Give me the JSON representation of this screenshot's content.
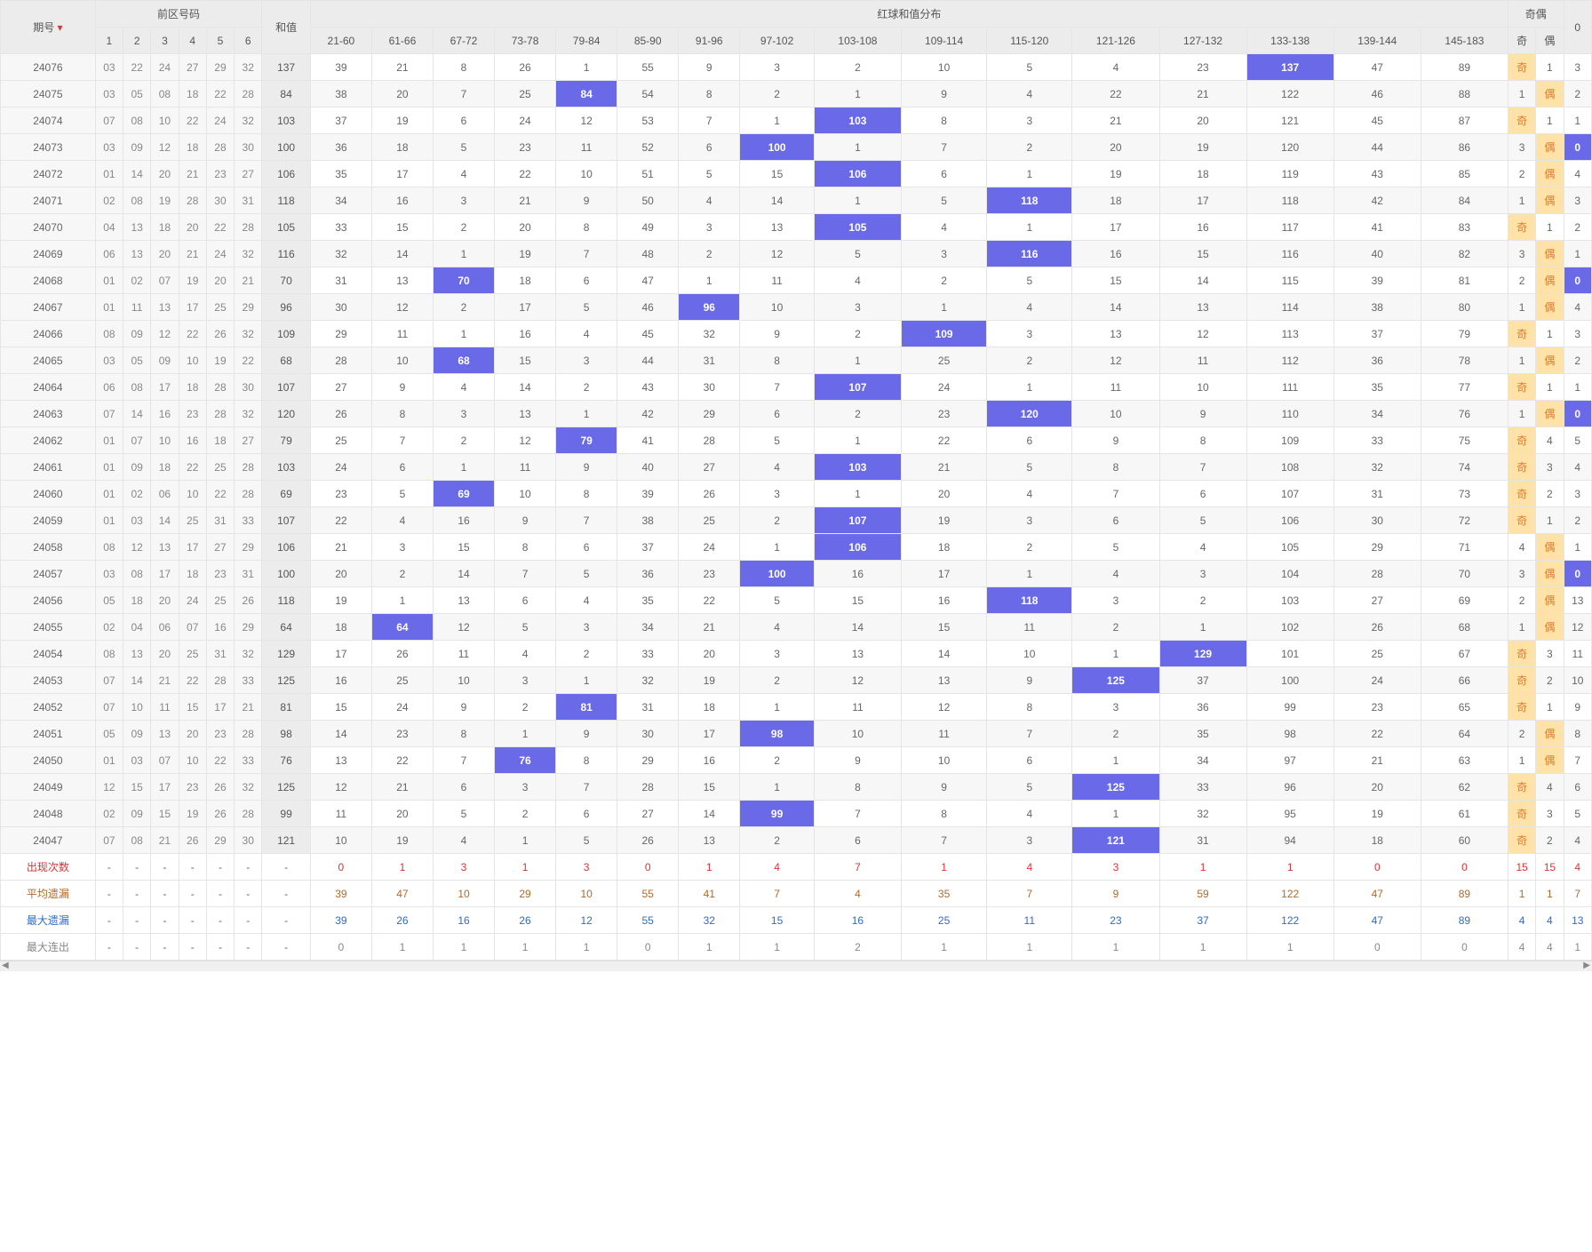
{
  "headers": {
    "period": "期号",
    "front_group": "前区号码",
    "front_cols": [
      "1",
      "2",
      "3",
      "4",
      "5",
      "6"
    ],
    "sum": "和值",
    "dist_group": "红球和值分布",
    "dist_cols": [
      "21-60",
      "61-66",
      "67-72",
      "73-78",
      "79-84",
      "85-90",
      "91-96",
      "97-102",
      "103-108",
      "109-114",
      "115-120",
      "121-126",
      "127-132",
      "133-138",
      "139-144",
      "145-183"
    ],
    "parity_group": "奇偶",
    "parity_cols": [
      "奇",
      "偶"
    ],
    "tail": "0"
  },
  "stat_rows": [
    {
      "label": "出现次数",
      "cls": "label-red",
      "vals": [
        "0",
        "1",
        "3",
        "1",
        "3",
        "0",
        "1",
        "4",
        "7",
        "1",
        "4",
        "3",
        "1",
        "1",
        "0",
        "0",
        "15",
        "15",
        "4"
      ],
      "color": "#d33"
    },
    {
      "label": "平均遗漏",
      "cls": "label-brown",
      "vals": [
        "39",
        "47",
        "10",
        "29",
        "10",
        "55",
        "41",
        "7",
        "4",
        "35",
        "7",
        "9",
        "59",
        "122",
        "47",
        "89",
        "1",
        "1",
        "7"
      ],
      "color": "#b06a2b"
    },
    {
      "label": "最大遗漏",
      "cls": "label-blue",
      "vals": [
        "39",
        "26",
        "16",
        "26",
        "12",
        "55",
        "32",
        "15",
        "16",
        "25",
        "11",
        "23",
        "37",
        "122",
        "47",
        "89",
        "4",
        "4",
        "13"
      ],
      "color": "#2b6bd3"
    },
    {
      "label": "最大连出",
      "cls": "label-gray",
      "vals": [
        "0",
        "1",
        "1",
        "1",
        "1",
        "0",
        "1",
        "1",
        "2",
        "1",
        "1",
        "1",
        "1",
        "1",
        "0",
        "0",
        "4",
        "4",
        "1"
      ],
      "color": "#888"
    }
  ],
  "rows": [
    {
      "period": "24076",
      "front": [
        "03",
        "22",
        "24",
        "27",
        "29",
        "32"
      ],
      "sum": "137",
      "dist": [
        "39",
        "21",
        "8",
        "26",
        "1",
        "55",
        "9",
        "3",
        "2",
        "10",
        "5",
        "4",
        "23",
        "137",
        "47",
        "89"
      ],
      "hi": 13,
      "odd": "奇",
      "even": "1",
      "tail": "3",
      "pc": 0
    },
    {
      "period": "24075",
      "front": [
        "03",
        "05",
        "08",
        "18",
        "22",
        "28"
      ],
      "sum": "84",
      "dist": [
        "38",
        "20",
        "7",
        "25",
        "84",
        "54",
        "8",
        "2",
        "1",
        "9",
        "4",
        "22",
        "21",
        "122",
        "46",
        "88"
      ],
      "hi": 4,
      "odd": "1",
      "even": "偶",
      "tail": "2",
      "pc": 1
    },
    {
      "period": "24074",
      "front": [
        "07",
        "08",
        "10",
        "22",
        "24",
        "32"
      ],
      "sum": "103",
      "dist": [
        "37",
        "19",
        "6",
        "24",
        "12",
        "53",
        "7",
        "1",
        "103",
        "8",
        "3",
        "21",
        "20",
        "121",
        "45",
        "87"
      ],
      "hi": 8,
      "odd": "奇",
      "even": "1",
      "tail": "1",
      "pc": 0
    },
    {
      "period": "24073",
      "front": [
        "03",
        "09",
        "12",
        "18",
        "28",
        "30"
      ],
      "sum": "100",
      "dist": [
        "36",
        "18",
        "5",
        "23",
        "11",
        "52",
        "6",
        "100",
        "1",
        "7",
        "2",
        "20",
        "19",
        "120",
        "44",
        "86"
      ],
      "hi": 7,
      "odd": "3",
      "even": "偶",
      "tail": "0",
      "pc": 1,
      "tailhl": true
    },
    {
      "period": "24072",
      "front": [
        "01",
        "14",
        "20",
        "21",
        "23",
        "27"
      ],
      "sum": "106",
      "dist": [
        "35",
        "17",
        "4",
        "22",
        "10",
        "51",
        "5",
        "15",
        "106",
        "6",
        "1",
        "19",
        "18",
        "119",
        "43",
        "85"
      ],
      "hi": 8,
      "odd": "2",
      "even": "偶",
      "tail": "4",
      "pc": 1
    },
    {
      "period": "24071",
      "front": [
        "02",
        "08",
        "19",
        "28",
        "30",
        "31"
      ],
      "sum": "118",
      "dist": [
        "34",
        "16",
        "3",
        "21",
        "9",
        "50",
        "4",
        "14",
        "1",
        "5",
        "118",
        "18",
        "17",
        "118",
        "42",
        "84"
      ],
      "hi": 10,
      "odd": "1",
      "even": "偶",
      "tail": "3",
      "pc": 1
    },
    {
      "period": "24070",
      "front": [
        "04",
        "13",
        "18",
        "20",
        "22",
        "28"
      ],
      "sum": "105",
      "dist": [
        "33",
        "15",
        "2",
        "20",
        "8",
        "49",
        "3",
        "13",
        "105",
        "4",
        "1",
        "17",
        "16",
        "117",
        "41",
        "83"
      ],
      "hi": 8,
      "odd": "奇",
      "even": "1",
      "tail": "2",
      "pc": 0
    },
    {
      "period": "24069",
      "front": [
        "06",
        "13",
        "20",
        "21",
        "24",
        "32"
      ],
      "sum": "116",
      "dist": [
        "32",
        "14",
        "1",
        "19",
        "7",
        "48",
        "2",
        "12",
        "5",
        "3",
        "116",
        "16",
        "15",
        "116",
        "40",
        "82"
      ],
      "hi": 10,
      "odd": "3",
      "even": "偶",
      "tail": "1",
      "pc": 1
    },
    {
      "period": "24068",
      "front": [
        "01",
        "02",
        "07",
        "19",
        "20",
        "21"
      ],
      "sum": "70",
      "dist": [
        "31",
        "13",
        "70",
        "18",
        "6",
        "47",
        "1",
        "11",
        "4",
        "2",
        "5",
        "15",
        "14",
        "115",
        "39",
        "81"
      ],
      "hi": 2,
      "odd": "2",
      "even": "偶",
      "tail": "0",
      "pc": 1,
      "tailhl": true
    },
    {
      "period": "24067",
      "front": [
        "01",
        "11",
        "13",
        "17",
        "25",
        "29"
      ],
      "sum": "96",
      "dist": [
        "30",
        "12",
        "2",
        "17",
        "5",
        "46",
        "96",
        "10",
        "3",
        "1",
        "4",
        "14",
        "13",
        "114",
        "38",
        "80"
      ],
      "hi": 6,
      "odd": "1",
      "even": "偶",
      "tail": "4",
      "pc": 1
    },
    {
      "period": "24066",
      "front": [
        "08",
        "09",
        "12",
        "22",
        "26",
        "32"
      ],
      "sum": "109",
      "dist": [
        "29",
        "11",
        "1",
        "16",
        "4",
        "45",
        "32",
        "9",
        "2",
        "109",
        "3",
        "13",
        "12",
        "113",
        "37",
        "79"
      ],
      "hi": 9,
      "odd": "奇",
      "even": "1",
      "tail": "3",
      "pc": 0
    },
    {
      "period": "24065",
      "front": [
        "03",
        "05",
        "09",
        "10",
        "19",
        "22"
      ],
      "sum": "68",
      "dist": [
        "28",
        "10",
        "68",
        "15",
        "3",
        "44",
        "31",
        "8",
        "1",
        "25",
        "2",
        "12",
        "11",
        "112",
        "36",
        "78"
      ],
      "hi": 2,
      "odd": "1",
      "even": "偶",
      "tail": "2",
      "pc": 1
    },
    {
      "period": "24064",
      "front": [
        "06",
        "08",
        "17",
        "18",
        "28",
        "30"
      ],
      "sum": "107",
      "dist": [
        "27",
        "9",
        "4",
        "14",
        "2",
        "43",
        "30",
        "7",
        "107",
        "24",
        "1",
        "11",
        "10",
        "111",
        "35",
        "77"
      ],
      "hi": 8,
      "odd": "奇",
      "even": "1",
      "tail": "1",
      "pc": 0
    },
    {
      "period": "24063",
      "front": [
        "07",
        "14",
        "16",
        "23",
        "28",
        "32"
      ],
      "sum": "120",
      "dist": [
        "26",
        "8",
        "3",
        "13",
        "1",
        "42",
        "29",
        "6",
        "2",
        "23",
        "120",
        "10",
        "9",
        "110",
        "34",
        "76"
      ],
      "hi": 10,
      "odd": "1",
      "even": "偶",
      "tail": "0",
      "pc": 1,
      "tailhl": true
    },
    {
      "period": "24062",
      "front": [
        "01",
        "07",
        "10",
        "16",
        "18",
        "27"
      ],
      "sum": "79",
      "dist": [
        "25",
        "7",
        "2",
        "12",
        "79",
        "41",
        "28",
        "5",
        "1",
        "22",
        "6",
        "9",
        "8",
        "109",
        "33",
        "75"
      ],
      "hi": 4,
      "odd": "奇",
      "even": "4",
      "tail": "5",
      "pc": 0
    },
    {
      "period": "24061",
      "front": [
        "01",
        "09",
        "18",
        "22",
        "25",
        "28"
      ],
      "sum": "103",
      "dist": [
        "24",
        "6",
        "1",
        "11",
        "9",
        "40",
        "27",
        "4",
        "103",
        "21",
        "5",
        "8",
        "7",
        "108",
        "32",
        "74"
      ],
      "hi": 8,
      "odd": "奇",
      "even": "3",
      "tail": "4",
      "pc": 0
    },
    {
      "period": "24060",
      "front": [
        "01",
        "02",
        "06",
        "10",
        "22",
        "28"
      ],
      "sum": "69",
      "dist": [
        "23",
        "5",
        "69",
        "10",
        "8",
        "39",
        "26",
        "3",
        "1",
        "20",
        "4",
        "7",
        "6",
        "107",
        "31",
        "73"
      ],
      "hi": 2,
      "odd": "奇",
      "even": "2",
      "tail": "3",
      "pc": 0
    },
    {
      "period": "24059",
      "front": [
        "01",
        "03",
        "14",
        "25",
        "31",
        "33"
      ],
      "sum": "107",
      "dist": [
        "22",
        "4",
        "16",
        "9",
        "7",
        "38",
        "25",
        "2",
        "107",
        "19",
        "3",
        "6",
        "5",
        "106",
        "30",
        "72"
      ],
      "hi": 8,
      "odd": "奇",
      "even": "1",
      "tail": "2",
      "pc": 0
    },
    {
      "period": "24058",
      "front": [
        "08",
        "12",
        "13",
        "17",
        "27",
        "29"
      ],
      "sum": "106",
      "dist": [
        "21",
        "3",
        "15",
        "8",
        "6",
        "37",
        "24",
        "1",
        "106",
        "18",
        "2",
        "5",
        "4",
        "105",
        "29",
        "71"
      ],
      "hi": 8,
      "odd": "4",
      "even": "偶",
      "tail": "1",
      "pc": 1
    },
    {
      "period": "24057",
      "front": [
        "03",
        "08",
        "17",
        "18",
        "23",
        "31"
      ],
      "sum": "100",
      "dist": [
        "20",
        "2",
        "14",
        "7",
        "5",
        "36",
        "23",
        "100",
        "16",
        "17",
        "1",
        "4",
        "3",
        "104",
        "28",
        "70"
      ],
      "hi": 7,
      "odd": "3",
      "even": "偶",
      "tail": "0",
      "pc": 1,
      "tailhl": true
    },
    {
      "period": "24056",
      "front": [
        "05",
        "18",
        "20",
        "24",
        "25",
        "26"
      ],
      "sum": "118",
      "dist": [
        "19",
        "1",
        "13",
        "6",
        "4",
        "35",
        "22",
        "5",
        "15",
        "16",
        "118",
        "3",
        "2",
        "103",
        "27",
        "69"
      ],
      "hi": 10,
      "odd": "2",
      "even": "偶",
      "tail": "13",
      "pc": 1
    },
    {
      "period": "24055",
      "front": [
        "02",
        "04",
        "06",
        "07",
        "16",
        "29"
      ],
      "sum": "64",
      "dist": [
        "18",
        "64",
        "12",
        "5",
        "3",
        "34",
        "21",
        "4",
        "14",
        "15",
        "11",
        "2",
        "1",
        "102",
        "26",
        "68"
      ],
      "hi": 1,
      "odd": "1",
      "even": "偶",
      "tail": "12",
      "pc": 1
    },
    {
      "period": "24054",
      "front": [
        "08",
        "13",
        "20",
        "25",
        "31",
        "32"
      ],
      "sum": "129",
      "dist": [
        "17",
        "26",
        "11",
        "4",
        "2",
        "33",
        "20",
        "3",
        "13",
        "14",
        "10",
        "1",
        "129",
        "101",
        "25",
        "67"
      ],
      "hi": 12,
      "odd": "奇",
      "even": "3",
      "tail": "11",
      "pc": 0
    },
    {
      "period": "24053",
      "front": [
        "07",
        "14",
        "21",
        "22",
        "28",
        "33"
      ],
      "sum": "125",
      "dist": [
        "16",
        "25",
        "10",
        "3",
        "1",
        "32",
        "19",
        "2",
        "12",
        "13",
        "9",
        "125",
        "37",
        "100",
        "24",
        "66"
      ],
      "hi": 11,
      "odd": "奇",
      "even": "2",
      "tail": "10",
      "pc": 0
    },
    {
      "period": "24052",
      "front": [
        "07",
        "10",
        "11",
        "15",
        "17",
        "21"
      ],
      "sum": "81",
      "dist": [
        "15",
        "24",
        "9",
        "2",
        "81",
        "31",
        "18",
        "1",
        "11",
        "12",
        "8",
        "3",
        "36",
        "99",
        "23",
        "65"
      ],
      "hi": 4,
      "odd": "奇",
      "even": "1",
      "tail": "9",
      "pc": 0
    },
    {
      "period": "24051",
      "front": [
        "05",
        "09",
        "13",
        "20",
        "23",
        "28"
      ],
      "sum": "98",
      "dist": [
        "14",
        "23",
        "8",
        "1",
        "9",
        "30",
        "17",
        "98",
        "10",
        "11",
        "7",
        "2",
        "35",
        "98",
        "22",
        "64"
      ],
      "hi": 7,
      "odd": "2",
      "even": "偶",
      "tail": "8",
      "pc": 1
    },
    {
      "period": "24050",
      "front": [
        "01",
        "03",
        "07",
        "10",
        "22",
        "33"
      ],
      "sum": "76",
      "dist": [
        "13",
        "22",
        "7",
        "76",
        "8",
        "29",
        "16",
        "2",
        "9",
        "10",
        "6",
        "1",
        "34",
        "97",
        "21",
        "63"
      ],
      "hi": 3,
      "odd": "1",
      "even": "偶",
      "tail": "7",
      "pc": 1
    },
    {
      "period": "24049",
      "front": [
        "12",
        "15",
        "17",
        "23",
        "26",
        "32"
      ],
      "sum": "125",
      "dist": [
        "12",
        "21",
        "6",
        "3",
        "7",
        "28",
        "15",
        "1",
        "8",
        "9",
        "5",
        "125",
        "33",
        "96",
        "20",
        "62"
      ],
      "hi": 11,
      "odd": "奇",
      "even": "4",
      "tail": "6",
      "pc": 0
    },
    {
      "period": "24048",
      "front": [
        "02",
        "09",
        "15",
        "19",
        "26",
        "28"
      ],
      "sum": "99",
      "dist": [
        "11",
        "20",
        "5",
        "2",
        "6",
        "27",
        "14",
        "99",
        "7",
        "8",
        "4",
        "1",
        "32",
        "95",
        "19",
        "61"
      ],
      "hi": 7,
      "odd": "奇",
      "even": "3",
      "tail": "5",
      "pc": 0
    },
    {
      "period": "24047",
      "front": [
        "07",
        "08",
        "21",
        "26",
        "29",
        "30"
      ],
      "sum": "121",
      "dist": [
        "10",
        "19",
        "4",
        "1",
        "5",
        "26",
        "13",
        "2",
        "6",
        "7",
        "3",
        "121",
        "31",
        "94",
        "18",
        "60"
      ],
      "hi": 11,
      "odd": "奇",
      "even": "2",
      "tail": "4",
      "pc": 0
    }
  ],
  "trend_color": "#6a6ae8",
  "trend_width": 2
}
